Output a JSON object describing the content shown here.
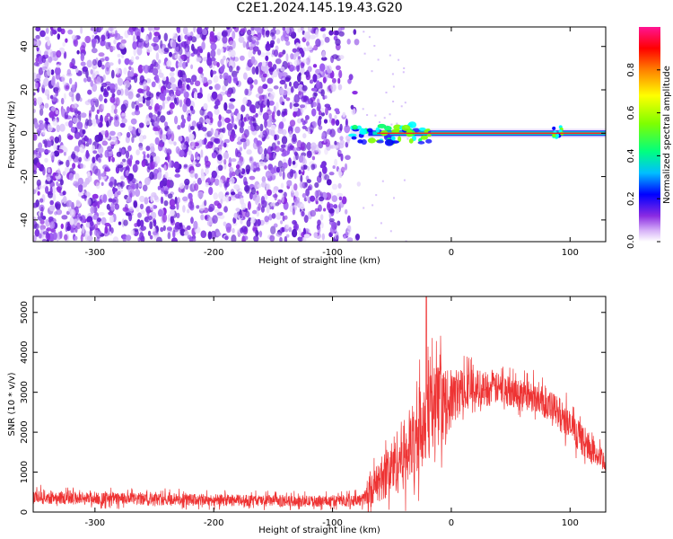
{
  "title": "C2E1.2024.145.19.43.G20",
  "chart_data": [
    {
      "type": "heatmap",
      "xlabel": "Height of straight line (km)",
      "ylabel": "Frequency (Hz)",
      "xlim": [
        -352,
        130
      ],
      "ylim": [
        -50,
        49
      ],
      "xticks": [
        -300,
        -200,
        -100,
        0,
        100
      ],
      "yticks": [
        -40,
        -20,
        0,
        20,
        40
      ],
      "noise_region_x": [
        -352,
        -75
      ],
      "signal_line": {
        "frequency": 0,
        "x_start": -85,
        "x_end": 130
      },
      "colorbar": {
        "label": "Normalized spectral amplitude",
        "range": [
          0.0,
          1.0
        ],
        "ticks": [
          0.0,
          0.2,
          0.4,
          0.6,
          0.8
        ],
        "colors": [
          "#ffffff",
          "#8a2be2",
          "#0000ff",
          "#00ffff",
          "#00ff00",
          "#ffff00",
          "#ff0000",
          "#ff1493"
        ]
      },
      "grid": false
    },
    {
      "type": "line",
      "xlabel": "Height of straight line (km)",
      "ylabel": "SNR (10 * v/v)",
      "xlim": [
        -352,
        130
      ],
      "ylim": [
        0,
        5400
      ],
      "xticks": [
        -300,
        -200,
        -100,
        0,
        100
      ],
      "yticks": [
        0,
        1000,
        2000,
        3000,
        4000,
        5000
      ],
      "color": "#ee3333",
      "envelope": [
        {
          "x": -352,
          "mean": 380,
          "amp": 300
        },
        {
          "x": -300,
          "mean": 340,
          "amp": 260
        },
        {
          "x": -200,
          "mean": 300,
          "amp": 250
        },
        {
          "x": -120,
          "mean": 270,
          "amp": 230
        },
        {
          "x": -75,
          "mean": 300,
          "amp": 250
        },
        {
          "x": -60,
          "mean": 800,
          "amp": 900
        },
        {
          "x": -45,
          "mean": 1300,
          "amp": 1400
        },
        {
          "x": -30,
          "mean": 1800,
          "amp": 1700
        },
        {
          "x": -20,
          "mean": 2600,
          "amp": 2200
        },
        {
          "x": -5,
          "mean": 2700,
          "amp": 1400
        },
        {
          "x": 10,
          "mean": 3100,
          "amp": 900
        },
        {
          "x": 40,
          "mean": 3100,
          "amp": 650
        },
        {
          "x": 70,
          "mean": 2900,
          "amp": 600
        },
        {
          "x": 90,
          "mean": 2500,
          "amp": 700
        },
        {
          "x": 110,
          "mean": 1800,
          "amp": 600
        },
        {
          "x": 130,
          "mean": 1200,
          "amp": 450
        }
      ],
      "peak": {
        "x": -21,
        "y": 5400
      },
      "grid": false
    }
  ]
}
